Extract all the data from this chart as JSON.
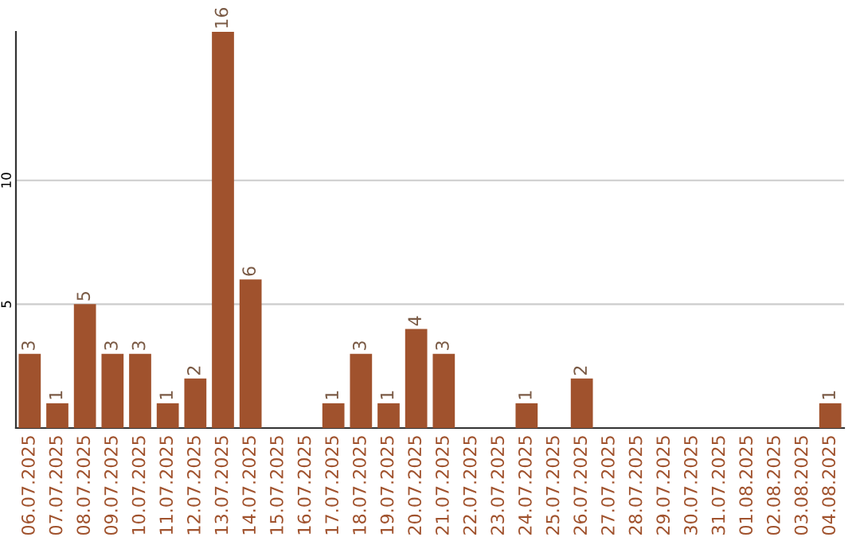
{
  "chart_data": {
    "type": "bar",
    "categories": [
      "06.07.2025",
      "07.07.2025",
      "08.07.2025",
      "09.07.2025",
      "10.07.2025",
      "11.07.2025",
      "12.07.2025",
      "13.07.2025",
      "14.07.2025",
      "15.07.2025",
      "16.07.2025",
      "17.07.2025",
      "18.07.2025",
      "19.07.2025",
      "20.07.2025",
      "21.07.2025",
      "22.07.2025",
      "23.07.2025",
      "24.07.2025",
      "25.07.2025",
      "26.07.2025",
      "27.07.2025",
      "28.07.2025",
      "29.07.2025",
      "30.07.2025",
      "31.07.2025",
      "01.08.2025",
      "02.08.2025",
      "03.08.2025",
      "04.08.2025"
    ],
    "values": [
      3,
      1,
      5,
      3,
      3,
      1,
      2,
      16,
      6,
      0,
      0,
      1,
      3,
      1,
      4,
      3,
      0,
      0,
      1,
      0,
      2,
      0,
      0,
      0,
      0,
      0,
      0,
      0,
      0,
      1
    ],
    "value_labels": [
      "3",
      "1",
      "5",
      "3",
      "3",
      "1",
      "2",
      "16",
      "6",
      null,
      null,
      "1",
      "3",
      "1",
      "4",
      "3",
      null,
      null,
      "1",
      null,
      "2",
      null,
      null,
      null,
      null,
      null,
      null,
      null,
      null,
      "1"
    ],
    "color": "#a0522d",
    "ylim": [
      0,
      16
    ],
    "yticks": [
      5,
      10
    ],
    "grid": "y"
  }
}
